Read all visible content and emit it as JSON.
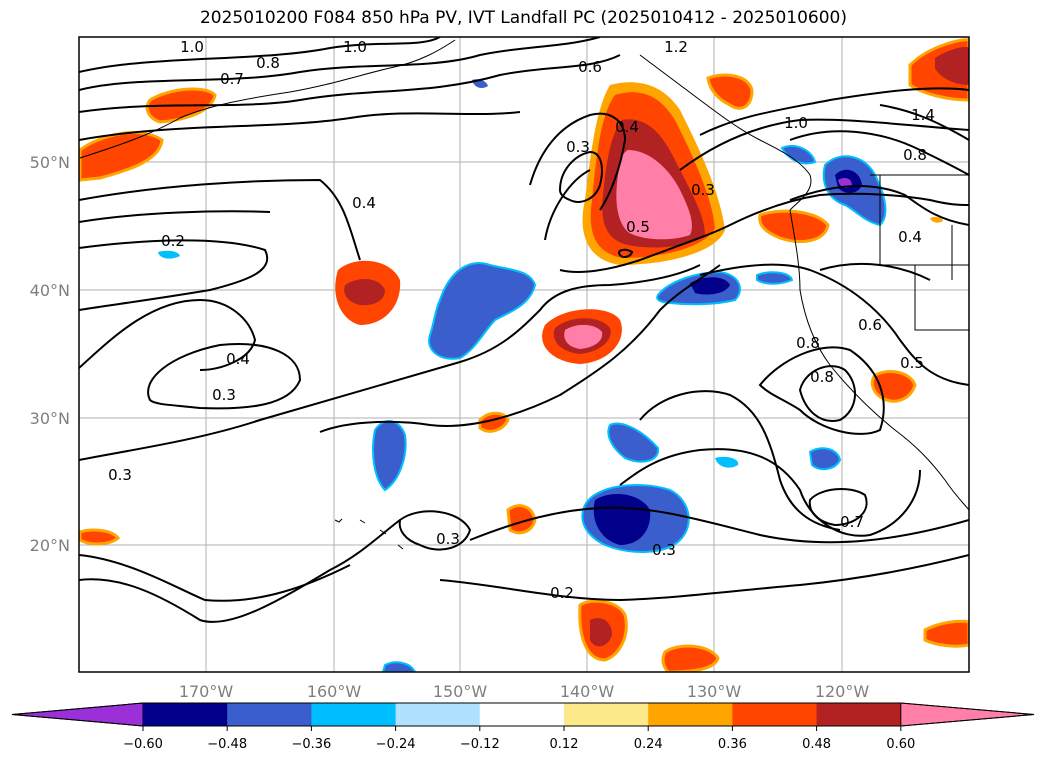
{
  "title": "2025010200 F084 850 hPa PV, IVT Landfall PC (2025010412 - 2025010600)",
  "axes": {
    "lon_ticks": [
      "170°W",
      "160°W",
      "150°W",
      "140°W",
      "130°W",
      "120°W"
    ],
    "lat_ticks": [
      "50°N",
      "40°N",
      "30°N",
      "20°N"
    ]
  },
  "contour_labels": [
    "1.0",
    "1.0",
    "1.2",
    "0.7",
    "0.8",
    "0.6",
    "0.4",
    "0.3",
    "0.5",
    "0.3",
    "1.0",
    "1.4",
    "0.8",
    "0.4",
    "0.4",
    "0.2",
    "0.4",
    "0.3",
    "0.3",
    "0.6",
    "0.5",
    "0.8",
    "0.8",
    "0.3",
    "0.3",
    "0.7",
    "0.2"
  ],
  "colorbar": {
    "colors": [
      "#9b30d8",
      "#00008b",
      "#3a5fcd",
      "#00bfff",
      "#b0e2ff",
      "#ffffff",
      "#fce98a",
      "#ffa500",
      "#ff4500",
      "#b22222",
      "#ff7fa8"
    ],
    "tick_labels": [
      "−0.60",
      "−0.48",
      "−0.36",
      "−0.24",
      "−0.12",
      "0.12",
      "0.24",
      "0.36",
      "0.48",
      "0.60"
    ]
  }
}
